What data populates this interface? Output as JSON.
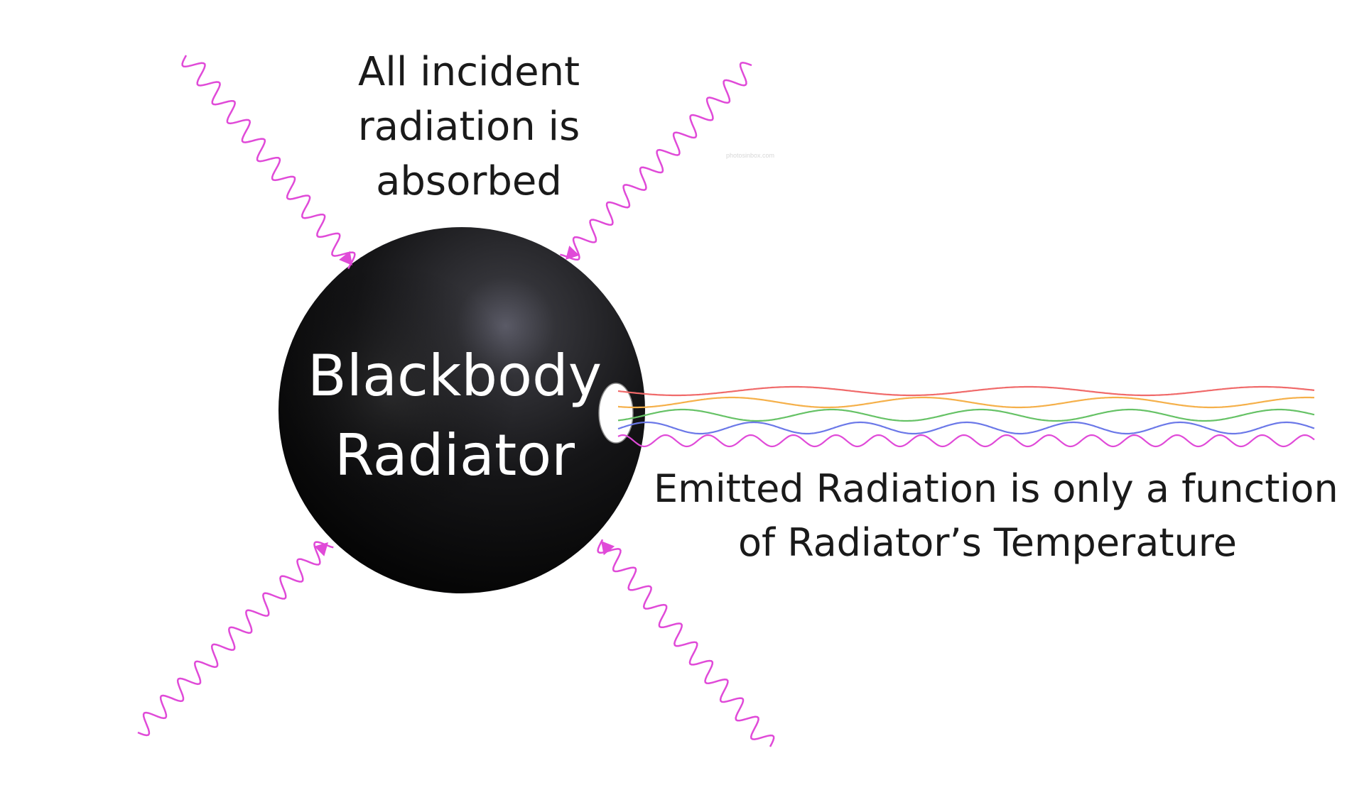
{
  "diagram": {
    "absorbed_caption": [
      "All incident",
      "radiation is",
      "absorbed"
    ],
    "body_label": [
      "Blackbody",
      "Radiator"
    ],
    "emitted_caption": [
      "Emitted Radiation is only a function",
      "of Radiator’s Temperature"
    ],
    "watermark": "photosinbox.com",
    "incident_ray_color": "#e04ad8",
    "emitted_ray_colors": [
      "#f06a6a",
      "#f5b04a",
      "#66c266",
      "#6b78e8",
      "#e04ad8"
    ],
    "sphere_color": "#141414"
  }
}
